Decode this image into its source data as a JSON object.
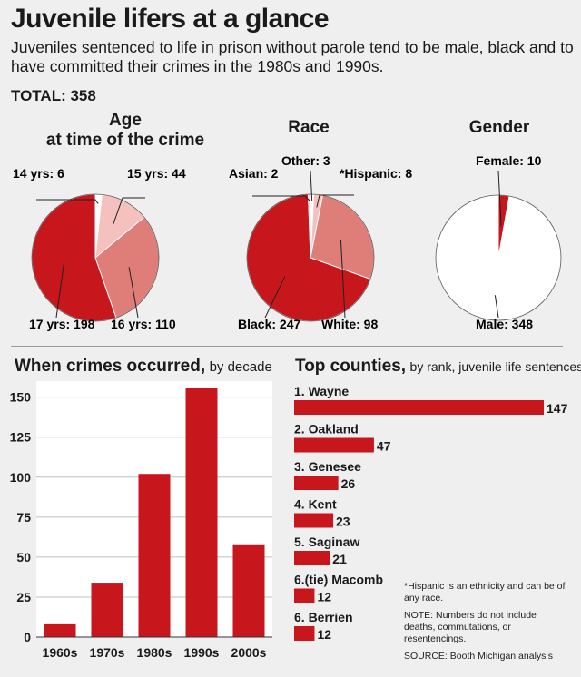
{
  "title": "Juvenile lifers at a glance",
  "subtitle": "Juveniles sentenced to life in prison without parole tend to be male, black and to have committed their crimes in the 1980s and 1990s.",
  "total": "TOTAL: 358",
  "colors": {
    "dark": "#c8161d",
    "mid": "#df7d78",
    "light": "#f4c1be",
    "white": "#ffffff",
    "text": "#1a1a1a"
  },
  "chart_data": [
    {
      "type": "pie",
      "title": "Age",
      "subtitle": "at time of the crime",
      "slices": [
        {
          "label": "14 yrs: 6",
          "value": 6,
          "color": "#ffffff"
        },
        {
          "label": "15 yrs: 44",
          "value": 44,
          "color": "#f4c1be"
        },
        {
          "label": "16 yrs: 110",
          "value": 110,
          "color": "#df7d78"
        },
        {
          "label": "17 yrs: 198",
          "value": 198,
          "color": "#c8161d"
        }
      ]
    },
    {
      "type": "pie",
      "title": "Race",
      "slices": [
        {
          "label": "Other: 3",
          "value": 3,
          "color": "#ffffff"
        },
        {
          "label": "*Hispanic: 8",
          "value": 8,
          "color": "#f4c1be"
        },
        {
          "label": "White: 98",
          "value": 98,
          "color": "#df7d78"
        },
        {
          "label": "Black: 247",
          "value": 247,
          "color": "#c8161d"
        },
        {
          "label": "Asian: 2",
          "value": 2,
          "color": "#f4c1be"
        }
      ]
    },
    {
      "type": "pie",
      "title": "Gender",
      "slices": [
        {
          "label": "Female: 10",
          "value": 10,
          "color": "#c8161d"
        },
        {
          "label": "Male: 348",
          "value": 348,
          "color": "#ffffff"
        }
      ]
    },
    {
      "type": "bar",
      "title": "When crimes occurred,",
      "title_suffix": "by decade",
      "categories": [
        "1960s",
        "1970s",
        "1980s",
        "1990s",
        "2000s"
      ],
      "values": [
        8,
        34,
        102,
        156,
        58
      ],
      "ylim": [
        0,
        160
      ],
      "yticks": [
        "0",
        "25",
        "50",
        "75",
        "100",
        "125",
        "150"
      ],
      "grid": true
    },
    {
      "type": "bar",
      "orientation": "horizontal",
      "title": "Top counties,",
      "title_suffix": "by rank, juvenile life sentences",
      "categories": [
        "1. Wayne",
        "2. Oakland",
        "3. Genesee",
        "4. Kent",
        "5. Saginaw",
        "6.(tie) Macomb",
        "6. Berrien"
      ],
      "values": [
        147,
        47,
        26,
        23,
        21,
        12,
        12
      ],
      "value_labels": [
        "147",
        "47",
        "26",
        "23",
        "21",
        "12",
        "12"
      ],
      "xlim": [
        0,
        147
      ]
    }
  ],
  "notes": {
    "hispanic": "*Hispanic is an ethnicity and can be of any race.",
    "numbers": "NOTE: Numbers do not include deaths, commutations, or resentencings.",
    "source": "SOURCE: Booth Michigan analysis"
  }
}
